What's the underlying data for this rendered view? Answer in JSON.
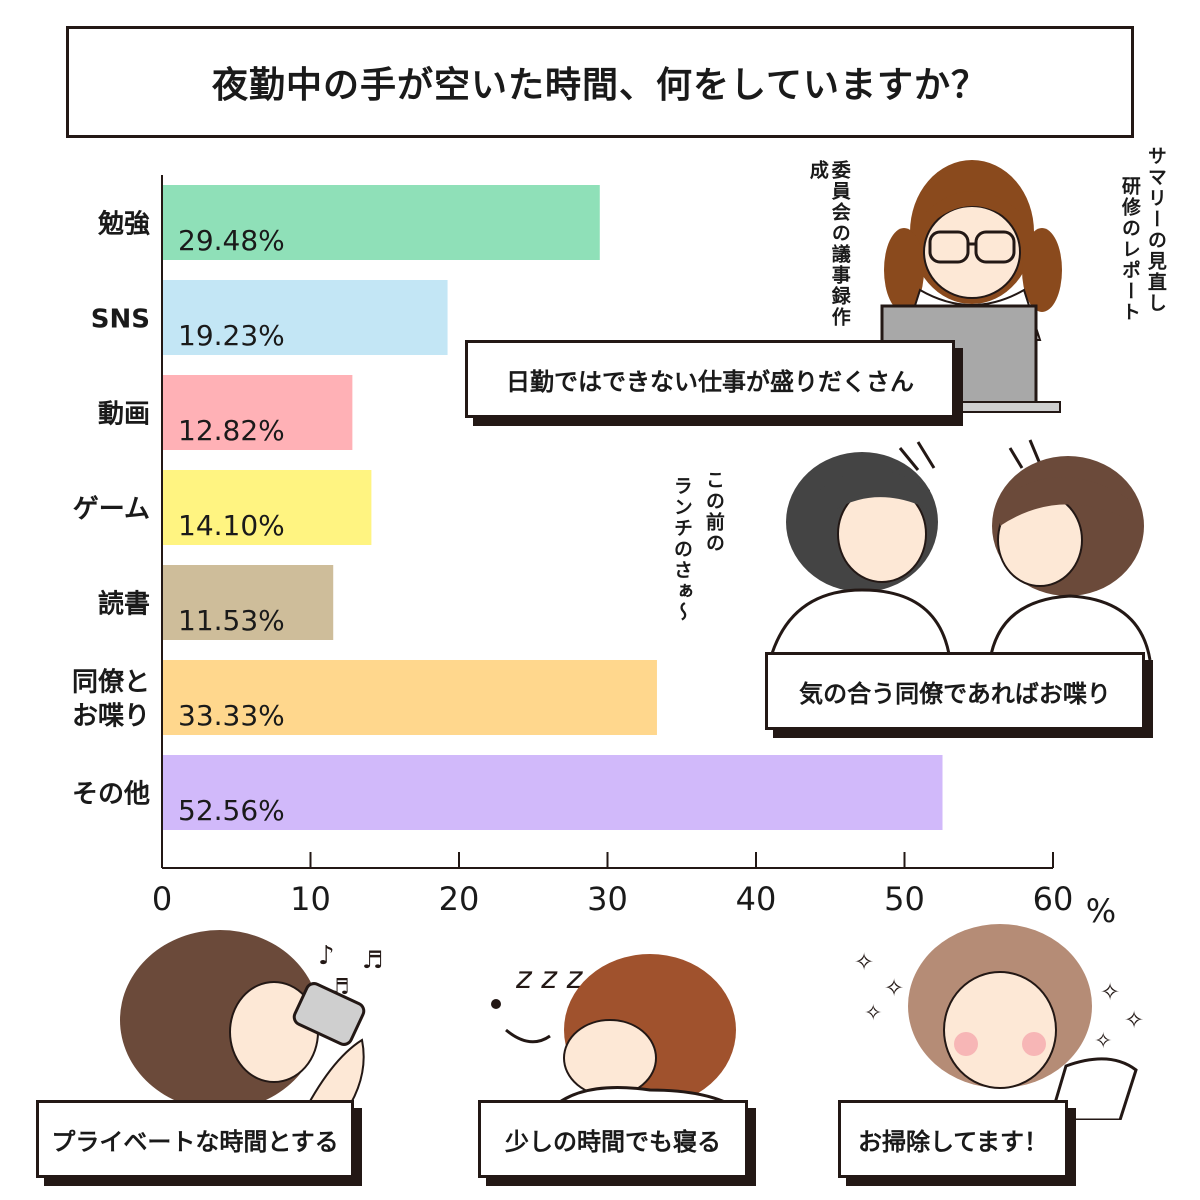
{
  "title": "夜勤中の手が空いた時間、何をしていますか？",
  "chart_data": {
    "type": "bar",
    "orientation": "horizontal",
    "categories": [
      "勉強",
      "SNS",
      "動画",
      "ゲーム",
      "読書",
      "同僚と\nお喋り",
      "その他"
    ],
    "values": [
      29.48,
      19.23,
      12.82,
      14.1,
      11.53,
      33.33,
      52.56
    ],
    "value_labels": [
      "29.48%",
      "19.23%",
      "12.82%",
      "14.10%",
      "11.53%",
      "33.33%",
      "52.56%"
    ],
    "colors": [
      "#8fe0b8",
      "#c3e6f5",
      "#ffb1b6",
      "#fff481",
      "#cebd9a",
      "#ffd78d",
      "#d1b9fa"
    ],
    "xlim": [
      0,
      60
    ],
    "xticks": [
      "0",
      "10",
      "20",
      "30",
      "40",
      "50",
      "60"
    ],
    "xunit": "%",
    "grid": false,
    "legend": "none"
  },
  "annotations": {
    "study_notes": [
      "委員会の議事録作成",
      "研修のレポート",
      "サマリーの見直し"
    ],
    "study_caption": "日勤ではできない仕事が盛りだくさん",
    "chat_speech": [
      "この前の",
      "ランチのさぁ〜"
    ],
    "chat_caption": "気の合う同僚であればお喋り",
    "bottom_captions": [
      "プライベートな時間とする",
      "少しの時間でも寝る",
      "お掃除してます！"
    ]
  }
}
